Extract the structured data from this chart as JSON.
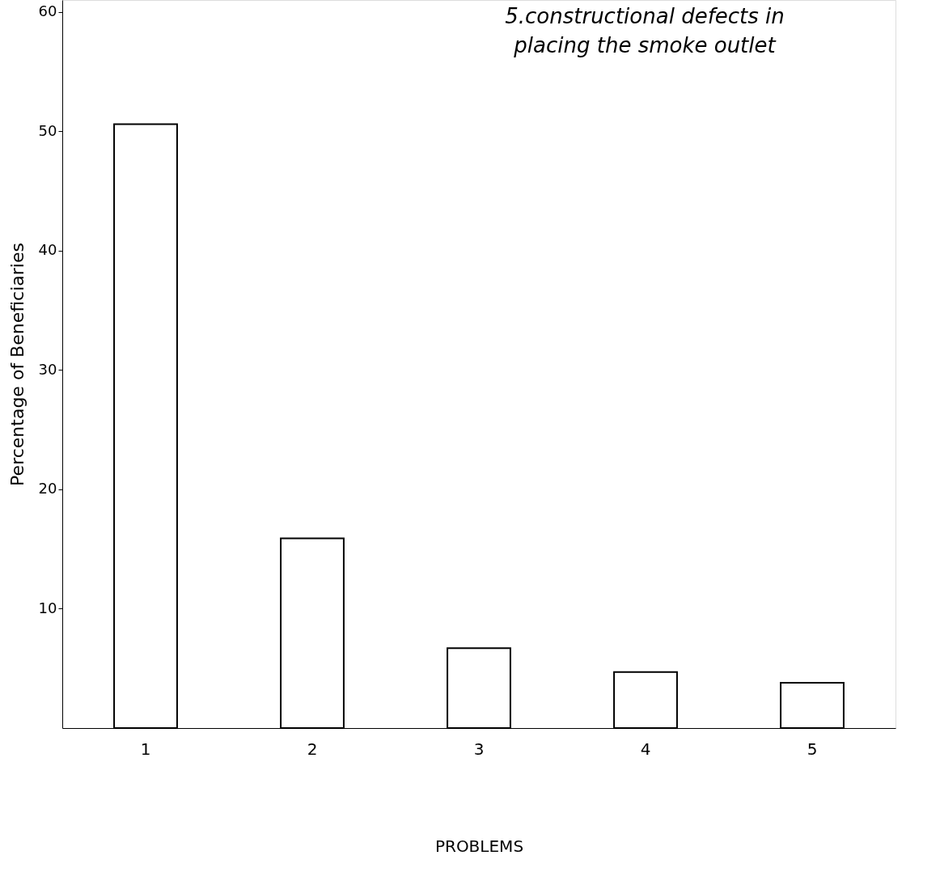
{
  "chart_data": {
    "type": "bar",
    "categories": [
      "1",
      "2",
      "3",
      "4",
      "5"
    ],
    "values": [
      50.6,
      15.9,
      6.7,
      4.7,
      3.8
    ],
    "colors": [
      "#ffffff",
      "#ffffff",
      "#ffffff",
      "#ffffff",
      "#ffffff"
    ],
    "xlabel": "PROBLEMS",
    "ylabel": "Percentage of Beneficiaries",
    "ylim": [
      0,
      61
    ],
    "yticks": [
      10,
      20,
      30,
      40,
      50,
      60
    ],
    "grid": false,
    "annotations": [
      "5.constructional defects in",
      "placing the smoke outlet"
    ]
  }
}
